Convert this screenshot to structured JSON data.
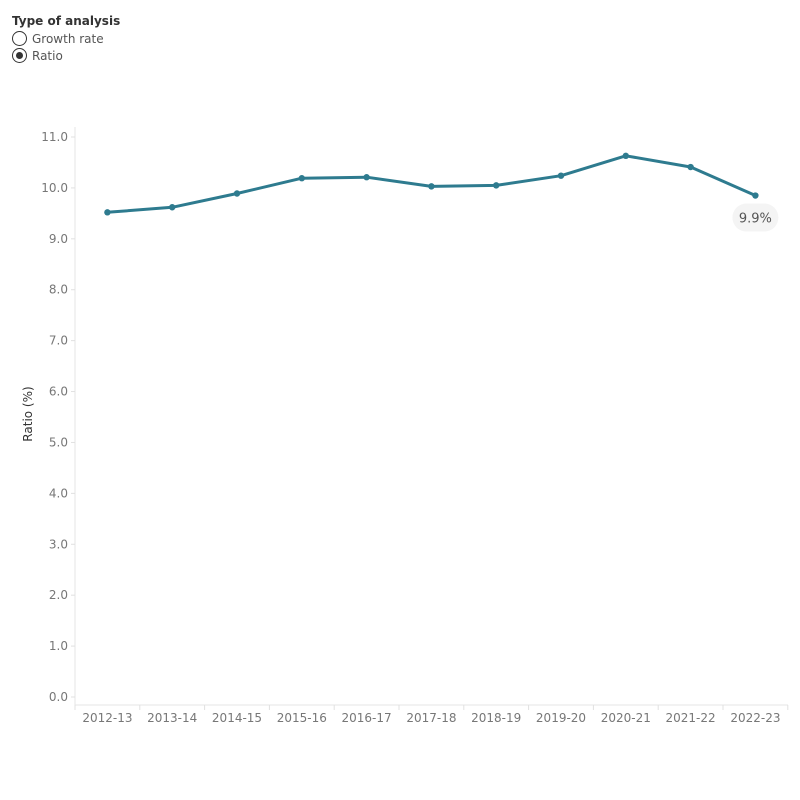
{
  "controls": {
    "title": "Type of analysis",
    "options": [
      {
        "label": "Growth rate",
        "selected": false
      },
      {
        "label": "Ratio",
        "selected": true
      }
    ]
  },
  "chart_data": {
    "type": "line",
    "title": "",
    "xlabel": "",
    "ylabel": "Ratio (%)",
    "categories": [
      "2012-13",
      "2013-14",
      "2014-15",
      "2015-16",
      "2016-17",
      "2017-18",
      "2018-19",
      "2019-20",
      "2020-21",
      "2021-22",
      "2022-23"
    ],
    "series": [
      {
        "values": [
          9.52,
          9.62,
          9.89,
          10.19,
          10.21,
          10.03,
          10.05,
          10.24,
          10.63,
          10.41,
          9.85
        ],
        "color": "#2e7b8f"
      }
    ],
    "ylim": [
      0,
      11
    ],
    "yticks": [
      "0.0",
      "1.0",
      "2.0",
      "3.0",
      "4.0",
      "5.0",
      "6.0",
      "7.0",
      "8.0",
      "9.0",
      "10.0",
      "11.0"
    ],
    "annotations": [
      {
        "category": "2022-23",
        "text": "9.9%"
      }
    ],
    "grid": false,
    "legend": "none"
  }
}
